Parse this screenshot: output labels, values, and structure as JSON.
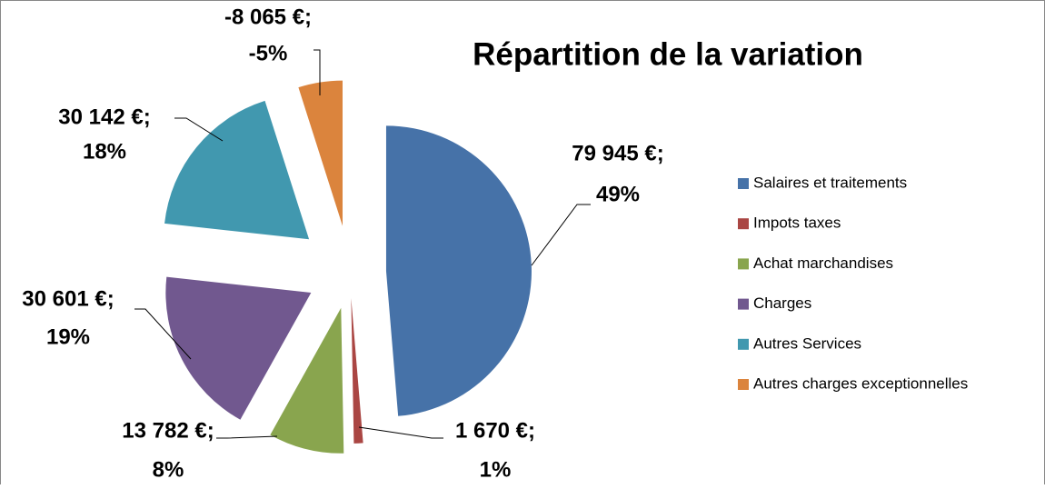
{
  "chart_data": {
    "type": "pie",
    "title": "Répartition de la variation",
    "categories": [
      "Salaires et traitements",
      "Impots taxes",
      "Achat marchandises",
      "Charges",
      "Autres Services",
      "Autres charges exceptionnelles"
    ],
    "values": [
      79945,
      1670,
      13782,
      30601,
      30142,
      -8065
    ],
    "value_labels": [
      "79 945 €;",
      "1 670 €;",
      "13 782 €;",
      "30 601 €;",
      "30 142 €;",
      "-8 065 €;"
    ],
    "percent_labels": [
      "49%",
      "1%",
      "8%",
      "19%",
      "18%",
      "-5%"
    ],
    "colors": [
      "#4672a8",
      "#aa4643",
      "#89a54e",
      "#71588f",
      "#4198af",
      "#db843d"
    ],
    "legend": "right"
  }
}
